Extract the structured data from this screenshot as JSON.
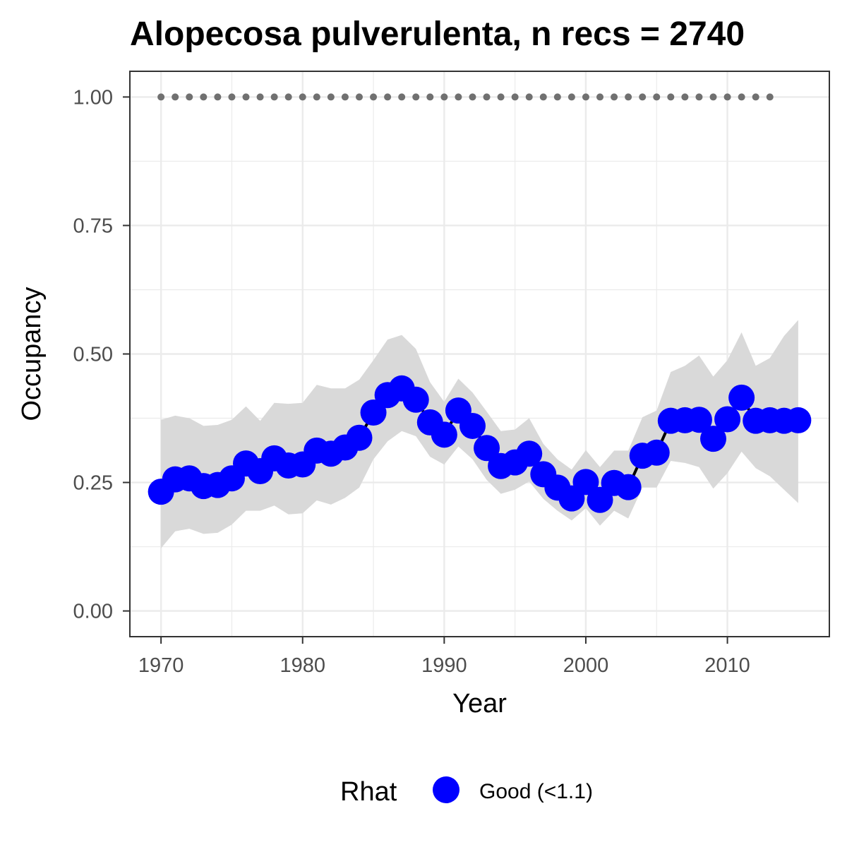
{
  "chart_data": {
    "type": "line",
    "title": "Alopecosa pulverulenta, n recs = 2740",
    "xlabel": "Year",
    "ylabel": "Occupancy",
    "xlim": [
      1967.8,
      2017.2
    ],
    "ylim": [
      -0.05,
      1.05
    ],
    "x_ticks": [
      1970,
      1980,
      1990,
      2000,
      2010
    ],
    "x_tick_labels": [
      "1970",
      "1980",
      "1990",
      "2000",
      "2010"
    ],
    "y_ticks": [
      0,
      0.25,
      0.5,
      0.75,
      1.0
    ],
    "y_tick_labels": [
      "0.00",
      "0.25",
      "0.50",
      "0.75",
      "1.00"
    ],
    "grid": true,
    "legend": {
      "position": "bottom",
      "title": "Rhat",
      "entries": [
        {
          "label": "Good (<1.1)",
          "color": "#0000ff"
        }
      ]
    },
    "colors": {
      "points": "#0000ff",
      "line": "#000000",
      "ribbon": "#d9d9d9",
      "reference": "#707070"
    },
    "series": [
      {
        "x": [
          1970,
          1971,
          1972,
          1973,
          1974,
          1975,
          1976,
          1977,
          1978,
          1979,
          1980,
          1981,
          1982,
          1983,
          1984,
          1985,
          1986,
          1987,
          1988,
          1989,
          1990,
          1991,
          1992,
          1993,
          1994,
          1995,
          1996,
          1997,
          1998,
          1999,
          2000,
          2001,
          2002,
          2003,
          2004,
          2005,
          2006,
          2007,
          2008,
          2009,
          2010,
          2011,
          2012,
          2013,
          2014,
          2015
        ],
        "y": [
          0.232,
          0.256,
          0.258,
          0.243,
          0.245,
          0.258,
          0.287,
          0.272,
          0.297,
          0.283,
          0.285,
          0.312,
          0.306,
          0.318,
          0.337,
          0.386,
          0.42,
          0.433,
          0.411,
          0.367,
          0.343,
          0.39,
          0.36,
          0.317,
          0.282,
          0.289,
          0.306,
          0.266,
          0.24,
          0.219,
          0.251,
          0.216,
          0.249,
          0.241,
          0.302,
          0.308,
          0.37,
          0.371,
          0.372,
          0.335,
          0.373,
          0.415,
          0.37,
          0.371,
          0.37,
          0.371
        ],
        "lower": [
          0.122,
          0.155,
          0.16,
          0.15,
          0.152,
          0.168,
          0.195,
          0.195,
          0.205,
          0.188,
          0.19,
          0.215,
          0.207,
          0.22,
          0.24,
          0.295,
          0.33,
          0.35,
          0.34,
          0.3,
          0.285,
          0.32,
          0.295,
          0.255,
          0.228,
          0.236,
          0.252,
          0.218,
          0.195,
          0.176,
          0.2,
          0.166,
          0.195,
          0.18,
          0.24,
          0.24,
          0.292,
          0.288,
          0.28,
          0.238,
          0.268,
          0.31,
          0.278,
          0.262,
          0.236,
          0.21
        ],
        "upper": [
          0.372,
          0.38,
          0.375,
          0.36,
          0.362,
          0.372,
          0.398,
          0.37,
          0.405,
          0.403,
          0.405,
          0.44,
          0.433,
          0.433,
          0.45,
          0.488,
          0.528,
          0.537,
          0.51,
          0.445,
          0.407,
          0.452,
          0.425,
          0.388,
          0.35,
          0.353,
          0.375,
          0.325,
          0.295,
          0.275,
          0.313,
          0.28,
          0.312,
          0.312,
          0.377,
          0.39,
          0.465,
          0.477,
          0.497,
          0.456,
          0.488,
          0.542,
          0.477,
          0.492,
          0.535,
          0.566
        ]
      },
      {
        "x": [
          1970,
          1971,
          1972,
          1973,
          1974,
          1975,
          1976,
          1977,
          1978,
          1979,
          1980,
          1981,
          1982,
          1983,
          1984,
          1985,
          1986,
          1987,
          1988,
          1989,
          1990,
          1991,
          1992,
          1993,
          1994,
          1995,
          1996,
          1997,
          1998,
          1999,
          2000,
          2001,
          2002,
          2003,
          2004,
          2005,
          2006,
          2007,
          2008,
          2009,
          2010,
          2011,
          2012,
          2013
        ],
        "y": [
          1,
          1,
          1,
          1,
          1,
          1,
          1,
          1,
          1,
          1,
          1,
          1,
          1,
          1,
          1,
          1,
          1,
          1,
          1,
          1,
          1,
          1,
          1,
          1,
          1,
          1,
          1,
          1,
          1,
          1,
          1,
          1,
          1,
          1,
          1,
          1,
          1,
          1,
          1,
          1,
          1,
          1,
          1,
          1
        ]
      }
    ]
  }
}
